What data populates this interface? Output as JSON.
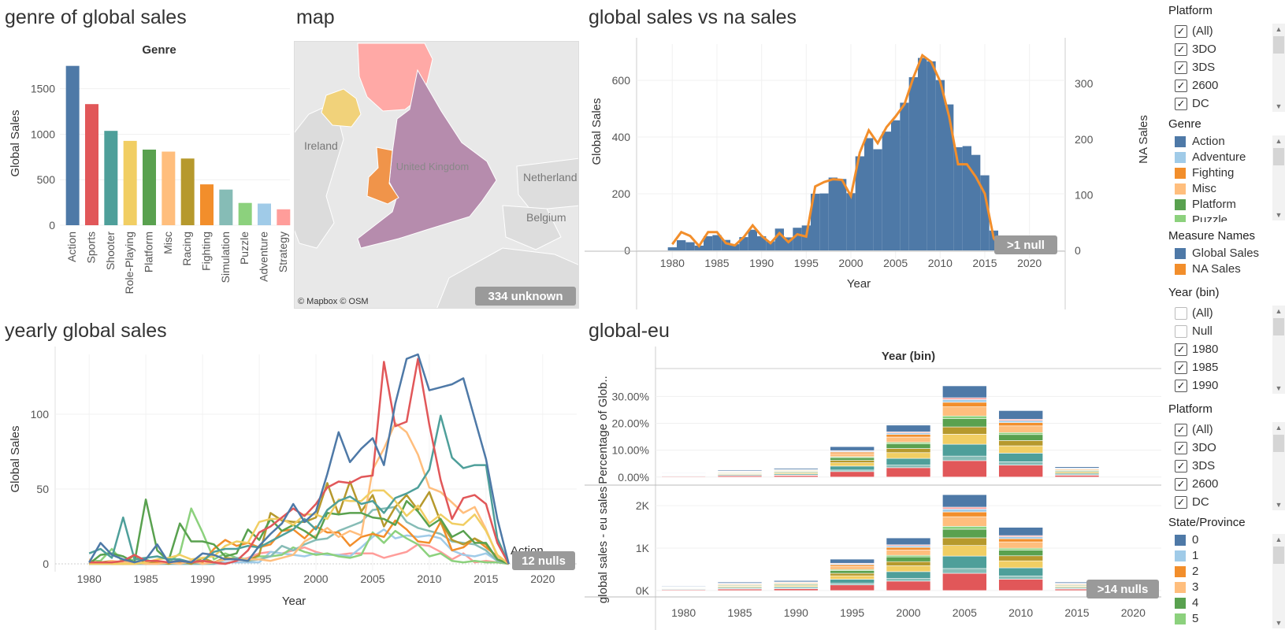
{
  "titles": {
    "genre": "genre of global sales",
    "map": "map",
    "gvna": "global sales vs na sales",
    "yearly": "yearly global sales",
    "geu": "global-eu"
  },
  "colors": {
    "Action": "#4e79a7",
    "Sports": "#e15759",
    "Shooter": "#4e9f9a",
    "Role-Playing": "#f1ce63",
    "Platform": "#59a14f",
    "Misc": "#ffbe7d",
    "Racing": "#b6992d",
    "Fighting": "#f28e2b",
    "Simulation": "#86bcb6",
    "Puzzle": "#8cd17d",
    "Adventure": "#a0cbe8",
    "Strategy": "#ff9d9a",
    "NA Sales": "#f28e2b",
    "Global Sales": "#4e79a7"
  },
  "map": {
    "labels": {
      "ireland": "Ireland",
      "uk": "United Kingdom",
      "netherlands": "Netherland",
      "belgium": "Belgium"
    },
    "attribution": "© Mapbox © OSM",
    "unknown": "334 unknown"
  },
  "chart_data": [
    {
      "id": "genre",
      "type": "bar",
      "title": "genre of global sales",
      "header": "Genre",
      "ylabel": "Global Sales",
      "ylim": [
        0,
        1800
      ],
      "yticks": [
        0,
        500,
        1000,
        1500
      ],
      "categories": [
        "Action",
        "Sports",
        "Shooter",
        "Role-Playing",
        "Platform",
        "Misc",
        "Racing",
        "Fighting",
        "Simulation",
        "Puzzle",
        "Adventure",
        "Strategy"
      ],
      "values": [
        1751,
        1331,
        1037,
        927,
        831,
        809,
        733,
        449,
        392,
        245,
        238,
        175
      ]
    },
    {
      "id": "gvna",
      "type": "area",
      "title": "global sales vs na sales",
      "xlabel": "Year",
      "ylabel": "Global Sales",
      "y2label": "NA Sales",
      "xlim": [
        1976,
        2024
      ],
      "xticks": [
        1980,
        1985,
        1990,
        1995,
        2000,
        2005,
        2010,
        2015,
        2020
      ],
      "ylim": [
        0,
        700
      ],
      "yticks": [
        0,
        200,
        400,
        600
      ],
      "y2lim": [
        0,
        357
      ],
      "y2ticks": [
        0,
        100,
        200,
        300
      ],
      "nulls": ">1 null",
      "years": [
        1980,
        1981,
        1982,
        1983,
        1984,
        1985,
        1986,
        1987,
        1988,
        1989,
        1990,
        1991,
        1992,
        1993,
        1994,
        1995,
        1996,
        1997,
        1998,
        1999,
        2000,
        2001,
        2002,
        2003,
        2004,
        2005,
        2006,
        2007,
        2008,
        2009,
        2010,
        2011,
        2012,
        2013,
        2014,
        2015,
        2016,
        2017
      ],
      "series": [
        {
          "name": "Global Sales",
          "values": [
            11,
            36,
            29,
            17,
            50,
            54,
            37,
            22,
            47,
            73,
            50,
            32,
            77,
            46,
            80,
            88,
            200,
            201,
            257,
            252,
            202,
            332,
            396,
            357,
            419,
            459,
            521,
            611,
            679,
            667,
            601,
            515,
            364,
            368,
            337,
            265,
            70,
            0
          ]
        },
        {
          "name": "NA Sales",
          "values": [
            11,
            33,
            26,
            8,
            33,
            33,
            13,
            9,
            24,
            45,
            26,
            13,
            31,
            15,
            29,
            25,
            115,
            123,
            128,
            127,
            98,
            176,
            216,
            193,
            222,
            241,
            263,
            311,
            351,
            339,
            304,
            241,
            155,
            155,
            132,
            102,
            22,
            0
          ]
        }
      ]
    },
    {
      "id": "yearly",
      "type": "line",
      "title": "yearly global sales",
      "xlabel": "Year",
      "ylabel": "Global Sales",
      "xlim": [
        1977,
        2023
      ],
      "xticks": [
        1980,
        1985,
        1990,
        1995,
        2000,
        2005,
        2010,
        2015,
        2020
      ],
      "ylim": [
        0,
        140
      ],
      "yticks": [
        0,
        50,
        100
      ],
      "nulls": "12 nulls",
      "end_label": "Action",
      "years": [
        1980,
        1981,
        1982,
        1983,
        1984,
        1985,
        1986,
        1987,
        1988,
        1989,
        1990,
        1991,
        1992,
        1993,
        1994,
        1995,
        1996,
        1997,
        1998,
        1999,
        2000,
        2001,
        2002,
        2003,
        2004,
        2005,
        2006,
        2007,
        2008,
        2009,
        2010,
        2011,
        2012,
        2013,
        2014,
        2015,
        2016,
        2017
      ],
      "series": [
        {
          "name": "Action",
          "values": [
            1,
            14,
            6,
            3,
            1,
            3,
            13,
            1,
            2,
            1,
            7,
            6,
            3,
            3,
            2,
            12,
            20,
            27,
            40,
            28,
            35,
            60,
            88,
            68,
            77,
            84,
            66,
            107,
            137,
            140,
            116,
            118,
            120,
            124,
            97,
            70,
            30,
            0
          ]
        },
        {
          "name": "Sports",
          "values": [
            1,
            1,
            1,
            2,
            6,
            2,
            2,
            1,
            2,
            1,
            2,
            1,
            0,
            2,
            9,
            21,
            25,
            31,
            37,
            32,
            40,
            51,
            55,
            54,
            58,
            59,
            135,
            92,
            95,
            137,
            93,
            56,
            30,
            44,
            46,
            40,
            14,
            0
          ]
        },
        {
          "name": "Shooter",
          "values": [
            7,
            10,
            4,
            31,
            3,
            4,
            5,
            3,
            3,
            1,
            2,
            8,
            10,
            10,
            12,
            11,
            15,
            19,
            23,
            30,
            23,
            36,
            42,
            45,
            40,
            42,
            34,
            44,
            47,
            51,
            63,
            99,
            71,
            64,
            66,
            66,
            17,
            0
          ]
        },
        {
          "name": "Role-Playing",
          "values": [
            0,
            0,
            0,
            0,
            0,
            1,
            3,
            4,
            6,
            3,
            4,
            5,
            12,
            15,
            14,
            28,
            30,
            30,
            26,
            33,
            33,
            30,
            43,
            42,
            42,
            49,
            49,
            42,
            32,
            39,
            27,
            33,
            27,
            26,
            33,
            22,
            6,
            0
          ]
        },
        {
          "name": "Platform",
          "values": [
            0,
            6,
            7,
            5,
            1,
            43,
            9,
            2,
            27,
            15,
            15,
            13,
            5,
            7,
            23,
            16,
            30,
            22,
            26,
            22,
            17,
            34,
            33,
            34,
            34,
            31,
            30,
            26,
            42,
            35,
            25,
            30,
            18,
            22,
            14,
            14,
            3,
            0
          ]
        },
        {
          "name": "Misc",
          "values": [
            3,
            0,
            2,
            1,
            1,
            0,
            0,
            1,
            0,
            2,
            0,
            1,
            3,
            3,
            3,
            3,
            2,
            4,
            6,
            15,
            19,
            24,
            18,
            22,
            19,
            63,
            77,
            94,
            88,
            73,
            51,
            48,
            41,
            34,
            38,
            23,
            5,
            0
          ]
        },
        {
          "name": "Racing",
          "values": [
            0,
            1,
            2,
            0,
            6,
            0,
            2,
            0,
            2,
            0,
            4,
            1,
            4,
            3,
            2,
            6,
            34,
            29,
            28,
            28,
            31,
            54,
            33,
            55,
            35,
            46,
            25,
            38,
            46,
            36,
            48,
            28,
            16,
            13,
            17,
            13,
            3,
            0
          ]
        },
        {
          "name": "Fighting",
          "values": [
            1,
            1,
            0,
            0,
            0,
            1,
            1,
            1,
            1,
            1,
            1,
            10,
            16,
            12,
            14,
            11,
            13,
            22,
            23,
            17,
            25,
            21,
            21,
            12,
            18,
            20,
            18,
            29,
            23,
            15,
            14,
            28,
            9,
            11,
            17,
            11,
            5,
            0
          ]
        },
        {
          "name": "Simulation",
          "values": [
            0,
            0,
            0,
            0,
            0,
            0,
            0,
            0,
            0,
            0,
            0,
            0,
            3,
            4,
            2,
            3,
            5,
            12,
            9,
            13,
            16,
            17,
            22,
            25,
            28,
            36,
            37,
            38,
            28,
            24,
            22,
            20,
            15,
            14,
            13,
            9,
            2,
            0
          ]
        },
        {
          "name": "Puzzle",
          "values": [
            2,
            2,
            10,
            1,
            3,
            3,
            0,
            1,
            7,
            37,
            21,
            3,
            7,
            4,
            3,
            5,
            5,
            6,
            11,
            8,
            6,
            7,
            5,
            4,
            6,
            21,
            14,
            22,
            17,
            13,
            5,
            7,
            2,
            1,
            2,
            1,
            1,
            0
          ]
        },
        {
          "name": "Adventure",
          "values": [
            0,
            0,
            0,
            1,
            0,
            0,
            0,
            0,
            0,
            0,
            0,
            0,
            1,
            1,
            1,
            1,
            8,
            7,
            6,
            5,
            7,
            6,
            6,
            5,
            11,
            18,
            23,
            17,
            19,
            18,
            19,
            17,
            9,
            6,
            5,
            7,
            2,
            0
          ]
        },
        {
          "name": "Strategy",
          "values": [
            0,
            0,
            0,
            0,
            0,
            0,
            0,
            0,
            0,
            0,
            0,
            0,
            0,
            2,
            4,
            7,
            8,
            7,
            9,
            11,
            8,
            6,
            6,
            7,
            7,
            7,
            4,
            6,
            8,
            13,
            12,
            8,
            3,
            7,
            1,
            2,
            1,
            0
          ]
        }
      ]
    },
    {
      "id": "geu",
      "type": "bar",
      "stacked": true,
      "title": "global-eu",
      "header": "Year (bin)",
      "categories": [
        "1980",
        "1985",
        "1990",
        "1995",
        "2000",
        "2005",
        "2010",
        "2015",
        "2020"
      ],
      "panes": [
        {
          "ylabel": "Percentage of Glob..",
          "ylim": [
            -3,
            38
          ],
          "yticks": [
            0,
            10,
            20,
            30
          ],
          "yticklabels": [
            "0.00%",
            "10.00%",
            "20.00%",
            "30.00%"
          ],
          "totals": [
            1.5,
            2.6,
            3.2,
            11.3,
            19.3,
            33.9,
            24.7,
            3.8,
            0
          ]
        },
        {
          "ylabel": "global sales - eu sales",
          "ylim": [
            -150,
            2300
          ],
          "yticks": [
            0,
            1000,
            2000
          ],
          "yticklabels": [
            "0K",
            "1K",
            "2K"
          ],
          "totals": [
            110,
            200,
            235,
            740,
            1240,
            2260,
            1490,
            200,
            0
          ]
        }
      ],
      "series_order": [
        "Sports",
        "Simulation",
        "Shooter",
        "Role-Playing",
        "Racing",
        "Platform",
        "Puzzle",
        "Misc",
        "Fighting",
        "Adventure",
        "Strategy",
        "Action"
      ],
      "shares": {
        "Sports": 0.18,
        "Simulation": 0.05,
        "Shooter": 0.13,
        "Role-Playing": 0.11,
        "Racing": 0.08,
        "Platform": 0.09,
        "Puzzle": 0.03,
        "Misc": 0.1,
        "Fighting": 0.05,
        "Adventure": 0.03,
        "Strategy": 0.02,
        "Action": 0.13
      },
      "nulls": ">14 nulls"
    }
  ],
  "sidebar": {
    "platform1": {
      "title": "Platform",
      "items": [
        {
          "label": "(All)",
          "checked": true
        },
        {
          "label": "3DO",
          "checked": true
        },
        {
          "label": "3DS",
          "checked": true
        },
        {
          "label": "2600",
          "checked": true
        },
        {
          "label": "DC",
          "checked": true
        }
      ]
    },
    "genre": {
      "title": "Genre",
      "items": [
        "Action",
        "Adventure",
        "Fighting",
        "Misc",
        "Platform",
        "Puzzle"
      ]
    },
    "measures": {
      "title": "Measure Names",
      "items": [
        "Global Sales",
        "NA Sales"
      ]
    },
    "yearbin": {
      "title": "Year (bin)",
      "items": [
        {
          "label": "(All)",
          "checked": false
        },
        {
          "label": "Null",
          "checked": false
        },
        {
          "label": "1980",
          "checked": true
        },
        {
          "label": "1985",
          "checked": true
        },
        {
          "label": "1990",
          "checked": true
        }
      ]
    },
    "platform2": {
      "title": "Platform",
      "items": [
        {
          "label": "(All)",
          "checked": true
        },
        {
          "label": "3DO",
          "checked": true
        },
        {
          "label": "3DS",
          "checked": true
        },
        {
          "label": "2600",
          "checked": true
        },
        {
          "label": "DC",
          "checked": true
        }
      ]
    },
    "state": {
      "title": "State/Province",
      "items": [
        {
          "label": "0",
          "color": "#4e79a7"
        },
        {
          "label": "1",
          "color": "#a0cbe8"
        },
        {
          "label": "2",
          "color": "#f28e2b"
        },
        {
          "label": "3",
          "color": "#ffbe7d"
        },
        {
          "label": "4",
          "color": "#59a14f"
        },
        {
          "label": "5",
          "color": "#8cd17d"
        }
      ]
    }
  }
}
